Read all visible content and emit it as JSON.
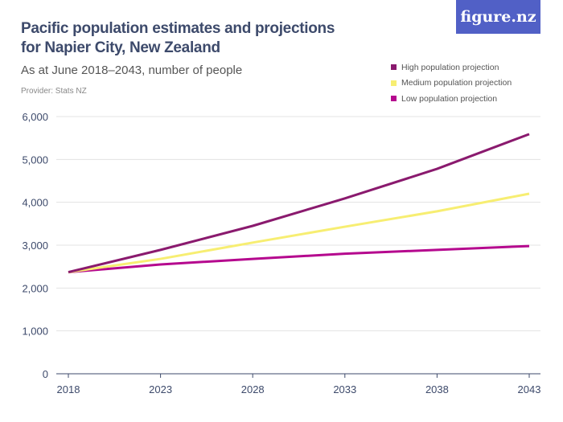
{
  "header": {
    "title": "Pacific population estimates and projections for Napier City, New Zealand",
    "subtitle": "As at June 2018–2043, number of people",
    "provider": "Provider: Stats NZ",
    "logo": "figure.nz"
  },
  "colors": {
    "logo_bg": "#5160c6"
  },
  "chart_data": {
    "type": "line",
    "title": "Pacific population estimates and projections for Napier City, New Zealand",
    "subtitle": "As at June 2018–2043, number of people",
    "x": [
      2018,
      2023,
      2028,
      2033,
      2038,
      2043
    ],
    "x_tick_labels": [
      "2018",
      "2023",
      "2028",
      "2033",
      "2038",
      "2043"
    ],
    "y_tick_labels": [
      "0",
      "1,000",
      "2,000",
      "3,000",
      "4,000",
      "5,000",
      "6,000"
    ],
    "yticks": [
      0,
      1000,
      2000,
      3000,
      4000,
      5000,
      6000
    ],
    "ylim": [
      0,
      6000
    ],
    "grid": true,
    "legend_placement": "top-right",
    "series": [
      {
        "name": "High population projection",
        "color": "#8a1a6e",
        "values": [
          2370,
          2890,
          3450,
          4090,
          4780,
          5590
        ]
      },
      {
        "name": "Medium population projection",
        "color": "#f7ee72",
        "values": [
          2370,
          2680,
          3060,
          3430,
          3790,
          4200
        ]
      },
      {
        "name": "Low population projection",
        "color": "#b5088e",
        "values": [
          2370,
          2550,
          2680,
          2800,
          2890,
          2980
        ]
      }
    ]
  }
}
